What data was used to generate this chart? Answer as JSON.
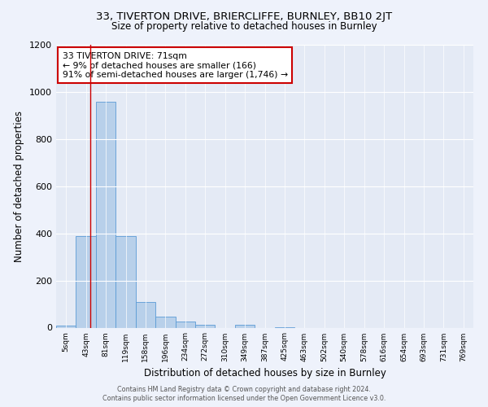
{
  "title_line1": "33, TIVERTON DRIVE, BRIERCLIFFE, BURNLEY, BB10 2JT",
  "title_line2": "Size of property relative to detached houses in Burnley",
  "xlabel": "Distribution of detached houses by size in Burnley",
  "ylabel": "Number of detached properties",
  "bar_labels": [
    "5sqm",
    "43sqm",
    "81sqm",
    "119sqm",
    "158sqm",
    "196sqm",
    "234sqm",
    "272sqm",
    "310sqm",
    "349sqm",
    "387sqm",
    "425sqm",
    "463sqm",
    "502sqm",
    "540sqm",
    "578sqm",
    "616sqm",
    "654sqm",
    "693sqm",
    "731sqm",
    "769sqm"
  ],
  "bar_values": [
    10,
    390,
    960,
    390,
    110,
    48,
    25,
    12,
    0,
    12,
    0,
    3,
    0,
    0,
    0,
    0,
    0,
    0,
    0,
    0,
    0
  ],
  "bar_color": "#b8d0ea",
  "bar_edge_color": "#5b9bd5",
  "annotation_text": "33 TIVERTON DRIVE: 71sqm\n← 9% of detached houses are smaller (166)\n91% of semi-detached houses are larger (1,746) →",
  "annotation_box_color": "white",
  "annotation_box_edge_color": "#cc0000",
  "vline_color": "#cc0000",
  "ylim": [
    0,
    1200
  ],
  "yticks": [
    0,
    200,
    400,
    600,
    800,
    1000,
    1200
  ],
  "footer_line1": "Contains HM Land Registry data © Crown copyright and database right 2024.",
  "footer_line2": "Contains public sector information licensed under the Open Government Licence v3.0.",
  "background_color": "#eef2fb",
  "plot_bg_color": "#e4eaf5",
  "grid_color": "white"
}
